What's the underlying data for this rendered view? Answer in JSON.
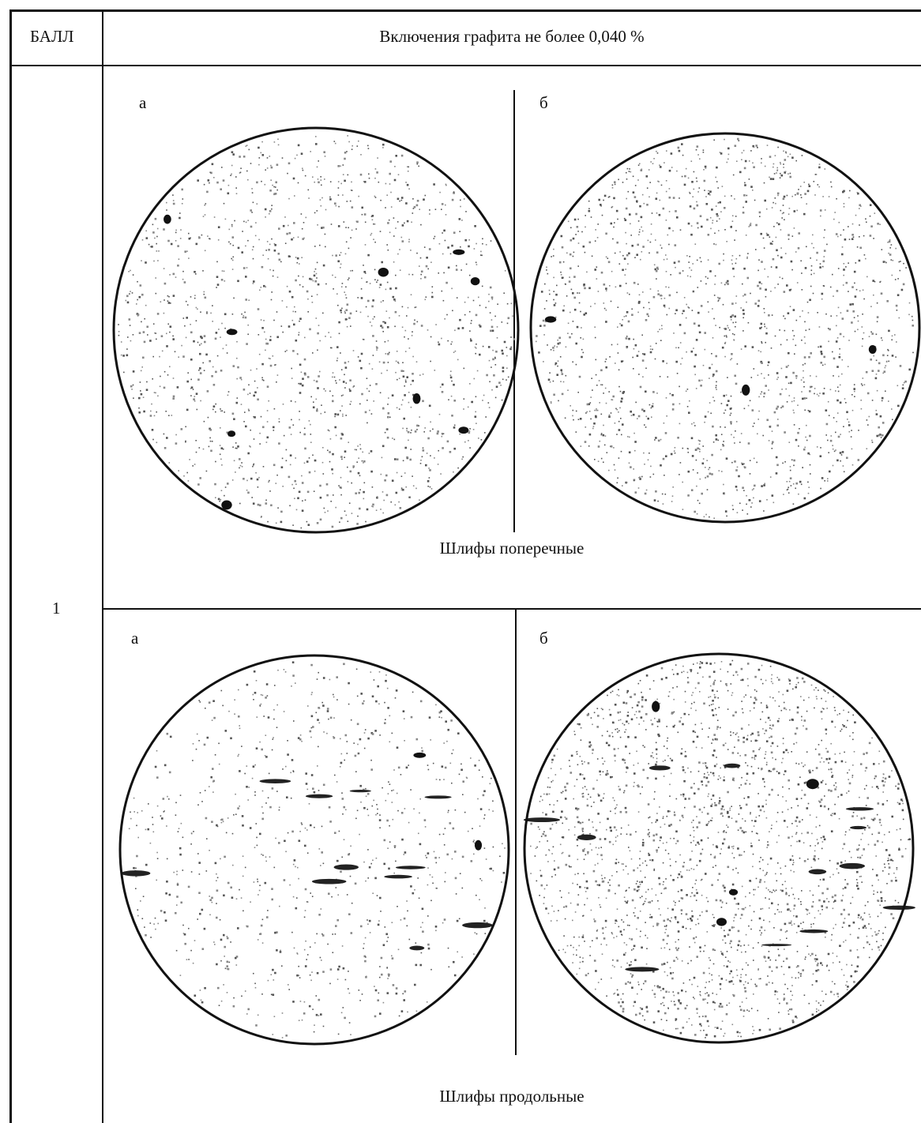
{
  "table": {
    "header_ball": "БАЛЛ",
    "header_title": "Включения графита не более 0,040 %",
    "ball_value": "1"
  },
  "sections": [
    {
      "label_a": "а",
      "label_b": "б",
      "caption": "Шлифы поперечные"
    },
    {
      "label_a": "а",
      "label_b": "б",
      "caption": "Шлифы продольные"
    }
  ],
  "micrographs": [
    {
      "id": "transverse-a",
      "seed": 11,
      "dots": 1600,
      "dark": 9,
      "streaks": 0
    },
    {
      "id": "transverse-b",
      "seed": 23,
      "dots": 1700,
      "dark": 3,
      "streaks": 0
    },
    {
      "id": "longitudinal-a",
      "seed": 37,
      "dots": 900,
      "dark": 2,
      "streaks": 11
    },
    {
      "id": "longitudinal-b",
      "seed": 51,
      "dots": 2200,
      "dark": 4,
      "streaks": 12
    }
  ]
}
